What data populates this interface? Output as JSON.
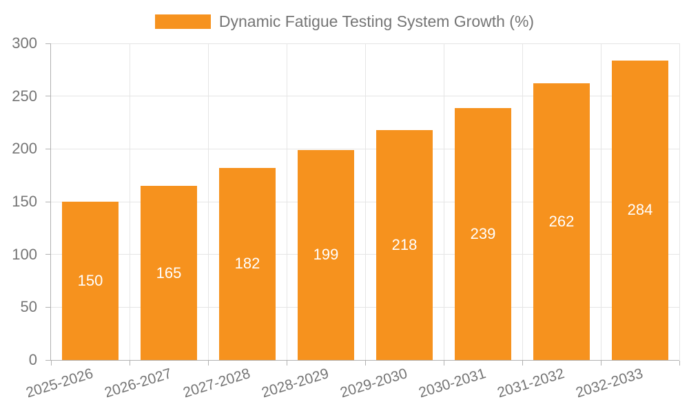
{
  "chart_data": {
    "type": "bar",
    "title": "Dynamic Fatigue Testing System Growth (%)",
    "series_name": "Dynamic Fatigue Testing System Growth (%)",
    "categories": [
      "2025-2026",
      "2026-2027",
      "2027-2028",
      "2028-2029",
      "2029-2030",
      "2030-2031",
      "2031-2032",
      "2032-2033"
    ],
    "values": [
      150,
      165,
      182,
      199,
      218,
      239,
      262,
      284
    ],
    "value_labels": [
      "150",
      "165",
      "182",
      "199",
      "218",
      "239",
      "262",
      "284"
    ],
    "xlabel": "",
    "ylabel": "",
    "ylim": [
      0,
      300
    ],
    "yticks": [
      0,
      50,
      100,
      150,
      200,
      250,
      300
    ],
    "grid": true,
    "legend_position": "top",
    "bar_color": "#f6921e",
    "value_label_color": "#ffffff",
    "axis_color": "#b0b0b0",
    "grid_color": "#e5e5e5",
    "tick_label_color": "#757575"
  }
}
